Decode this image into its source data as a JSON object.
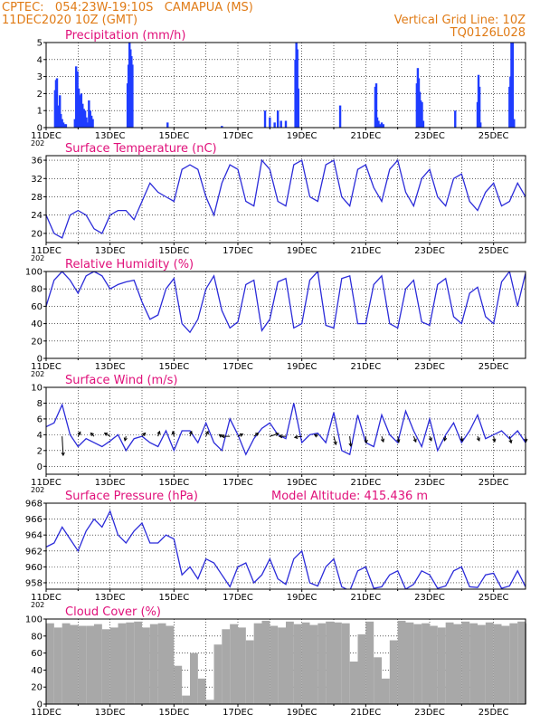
{
  "header": {
    "source_line": "CPTEC:   054:23W-19:10S   CAMAPUA (MS)",
    "date_line": "11DEC2020 10Z (GMT)",
    "grid_note": "Vertical Grid Line: 10Z",
    "code": "TQ0126L028"
  },
  "x_axis": {
    "ticks": [
      "11DEC",
      "13DEC",
      "15DEC",
      "17DEC",
      "19DEC",
      "21DEC",
      "23DEC",
      "25DEC"
    ],
    "year_fragment": "202"
  },
  "colors": {
    "header": "#e07b16",
    "title": "#e0107a",
    "line": "#2b2bd9",
    "bar": "#1f3cff",
    "cloud": "#a8a8a8",
    "arrow": "#000000"
  },
  "chart_data": [
    {
      "id": "precip",
      "type": "bar",
      "title": "Precipitation (mm/h)",
      "ylim": [
        0,
        5
      ],
      "yticks": [
        0,
        1,
        2,
        3,
        4,
        5
      ],
      "x_unit": "days after 11DEC 10Z",
      "xlim": [
        0,
        15
      ],
      "x": [
        0.28,
        0.31,
        0.34,
        0.37,
        0.4,
        0.43,
        0.46,
        0.5,
        0.54,
        0.58,
        0.62,
        0.9,
        0.94,
        0.98,
        1.02,
        1.06,
        1.1,
        1.14,
        1.18,
        1.22,
        1.26,
        1.3,
        1.34,
        1.38,
        1.42,
        1.46,
        2.55,
        2.58,
        2.61,
        2.64,
        2.67,
        2.7,
        3.8,
        5.5,
        6.85,
        7.0,
        7.15,
        7.25,
        7.35,
        7.5,
        7.8,
        7.83,
        7.86,
        7.89,
        9.2,
        10.3,
        10.33,
        10.36,
        10.4,
        10.45,
        10.5,
        10.55,
        11.6,
        11.63,
        11.66,
        11.69,
        11.72,
        11.76,
        11.8,
        12.8,
        13.5,
        13.53,
        13.56,
        13.59,
        14.5,
        14.53,
        14.56,
        14.6,
        14.64
      ],
      "values": [
        2.2,
        2.8,
        2.9,
        1.2,
        1.3,
        1.9,
        0.8,
        0.5,
        0.3,
        0.2,
        0.2,
        0.5,
        3.6,
        3.3,
        2.3,
        1.9,
        2.0,
        1.4,
        1.1,
        1.0,
        0.6,
        0.3,
        1.6,
        1.0,
        0.7,
        0.5,
        2.6,
        3.7,
        5.0,
        4.6,
        4.2,
        3.7,
        0.3,
        0.1,
        1.0,
        0.6,
        0.3,
        1.0,
        0.4,
        0.4,
        4.0,
        5.0,
        4.6,
        2.3,
        1.3,
        2.4,
        2.6,
        0.6,
        0.4,
        0.2,
        0.3,
        0.2,
        2.6,
        3.5,
        2.9,
        2.1,
        1.6,
        1.5,
        0.4,
        1.0,
        1.5,
        3.1,
        2.4,
        0.3,
        2.4,
        3.0,
        5.0,
        5.0,
        0.5
      ]
    },
    {
      "id": "temperature",
      "type": "line",
      "title": "Surface Temperature (nC)",
      "ylim": [
        18,
        37
      ],
      "yticks": [
        20,
        24,
        28,
        32,
        36
      ],
      "x_unit": "days after 11DEC 10Z",
      "xlim": [
        0,
        15
      ],
      "x": [
        0.0,
        0.25,
        0.5,
        0.75,
        1.0,
        1.25,
        1.5,
        1.75,
        2.0,
        2.25,
        2.5,
        2.75,
        3.0,
        3.25,
        3.5,
        3.75,
        4.0,
        4.25,
        4.5,
        4.75,
        5.0,
        5.25,
        5.5,
        5.75,
        6.0,
        6.25,
        6.5,
        6.75,
        7.0,
        7.25,
        7.5,
        7.75,
        8.0,
        8.25,
        8.5,
        8.75,
        9.0,
        9.25,
        9.5,
        9.75,
        10.0,
        10.25,
        10.5,
        10.75,
        11.0,
        11.25,
        11.5,
        11.75,
        12.0,
        12.25,
        12.5,
        12.75,
        13.0,
        13.25,
        13.5,
        13.75,
        14.0,
        14.25,
        14.5,
        14.75,
        15.0
      ],
      "values": [
        24,
        20,
        19,
        24,
        25,
        24,
        21,
        20,
        24,
        25,
        25,
        23,
        27,
        31,
        29,
        28,
        27,
        34,
        35,
        34,
        28,
        24,
        31,
        35,
        34,
        27,
        26,
        36,
        34,
        27,
        26,
        35,
        36,
        28,
        27,
        35,
        36,
        28,
        26,
        34,
        35,
        30,
        27,
        34,
        36,
        29,
        26,
        32,
        34,
        28,
        26,
        32,
        33,
        27,
        25,
        29,
        31,
        26,
        27,
        31,
        28
      ]
    },
    {
      "id": "humidity",
      "type": "line",
      "title": "Relative Humidity (%)",
      "ylim": [
        0,
        100
      ],
      "yticks": [
        0,
        20,
        40,
        60,
        80,
        100
      ],
      "x_unit": "days after 11DEC 10Z",
      "xlim": [
        0,
        15
      ],
      "x": [
        0.0,
        0.25,
        0.5,
        0.75,
        1.0,
        1.25,
        1.5,
        1.75,
        2.0,
        2.25,
        2.5,
        2.75,
        3.0,
        3.25,
        3.5,
        3.75,
        4.0,
        4.25,
        4.5,
        4.75,
        5.0,
        5.25,
        5.5,
        5.75,
        6.0,
        6.25,
        6.5,
        6.75,
        7.0,
        7.25,
        7.5,
        7.75,
        8.0,
        8.25,
        8.5,
        8.75,
        9.0,
        9.25,
        9.5,
        9.75,
        10.0,
        10.25,
        10.5,
        10.75,
        11.0,
        11.25,
        11.5,
        11.75,
        12.0,
        12.25,
        12.5,
        12.75,
        13.0,
        13.25,
        13.5,
        13.75,
        14.0,
        14.25,
        14.5,
        14.75,
        15.0
      ],
      "values": [
        60,
        90,
        100,
        90,
        75,
        95,
        100,
        95,
        80,
        85,
        88,
        90,
        65,
        45,
        50,
        80,
        92,
        40,
        30,
        45,
        80,
        95,
        55,
        35,
        42,
        85,
        90,
        32,
        45,
        88,
        92,
        35,
        40,
        90,
        100,
        38,
        35,
        92,
        95,
        40,
        40,
        85,
        95,
        40,
        35,
        80,
        90,
        42,
        38,
        85,
        92,
        48,
        40,
        75,
        82,
        48,
        40,
        88,
        100,
        60,
        98
      ]
    },
    {
      "id": "wind",
      "type": "line",
      "title": "Surface Wind (m/s)",
      "ylim": [
        -1,
        10
      ],
      "yticks": [
        0,
        2,
        4,
        6,
        8,
        10
      ],
      "x_unit": "days after 11DEC 10Z",
      "xlim": [
        0,
        15
      ],
      "x": [
        0.0,
        0.25,
        0.5,
        0.75,
        1.0,
        1.25,
        1.5,
        1.75,
        2.0,
        2.25,
        2.5,
        2.75,
        3.0,
        3.25,
        3.5,
        3.75,
        4.0,
        4.25,
        4.5,
        4.75,
        5.0,
        5.25,
        5.5,
        5.75,
        6.0,
        6.25,
        6.5,
        6.75,
        7.0,
        7.25,
        7.5,
        7.75,
        8.0,
        8.25,
        8.5,
        8.75,
        9.0,
        9.25,
        9.5,
        9.75,
        10.0,
        10.25,
        10.5,
        10.75,
        11.0,
        11.25,
        11.5,
        11.75,
        12.0,
        12.25,
        12.5,
        12.75,
        13.0,
        13.25,
        13.5,
        13.75,
        14.0,
        14.25,
        14.5,
        14.75,
        15.0
      ],
      "values": [
        5,
        5.5,
        7.8,
        4,
        2.5,
        3.5,
        3,
        2.5,
        3.2,
        4,
        2,
        3.5,
        3.8,
        3,
        2.5,
        4.5,
        2,
        4.5,
        4.5,
        3,
        5.5,
        3,
        2,
        6,
        4,
        1.5,
        3.5,
        4.8,
        5.5,
        4,
        3.5,
        8,
        3,
        4,
        4.2,
        3,
        6.8,
        2,
        1.5,
        6.5,
        3,
        2.5,
        6.5,
        4,
        3,
        7,
        4.5,
        2.5,
        6,
        2,
        4,
        5.5,
        3,
        4.5,
        6.5,
        3.5,
        4,
        4.5,
        3.5,
        4.5,
        3
      ],
      "arrows": [
        {
          "x": 0.5,
          "u": 0.2,
          "v": -3.5
        },
        {
          "x": 1.0,
          "u": 0.4,
          "v": 0.8
        },
        {
          "x": 1.5,
          "u": -0.6,
          "v": 0.6
        },
        {
          "x": 2.0,
          "u": -1.0,
          "v": 0.6
        },
        {
          "x": 2.5,
          "u": -0.2,
          "v": -0.8
        },
        {
          "x": 3.0,
          "u": 0.6,
          "v": 0.6
        },
        {
          "x": 3.5,
          "u": 0.3,
          "v": 0.9
        },
        {
          "x": 4.0,
          "u": -0.2,
          "v": 0.9
        },
        {
          "x": 4.5,
          "u": 0.3,
          "v": 0.9
        },
        {
          "x": 5.0,
          "u": 0.4,
          "v": 0.9
        },
        {
          "x": 5.5,
          "u": -0.5,
          "v": 0.3
        },
        {
          "x": 5.75,
          "u": -1.5,
          "v": 0.0
        },
        {
          "x": 6.0,
          "u": 0.9,
          "v": 0.4
        },
        {
          "x": 6.5,
          "u": 0.8,
          "v": 0.6
        },
        {
          "x": 7.0,
          "u": 1.6,
          "v": 0.5
        },
        {
          "x": 7.5,
          "u": -1.2,
          "v": 0.0
        },
        {
          "x": 8.0,
          "u": -1.3,
          "v": -0.2
        },
        {
          "x": 8.5,
          "u": -0.6,
          "v": 0.3
        },
        {
          "x": 9.0,
          "u": 0.4,
          "v": -1.5
        },
        {
          "x": 9.5,
          "u": 0.2,
          "v": -1.8
        },
        {
          "x": 10.0,
          "u": 0.1,
          "v": -1.2
        },
        {
          "x": 10.5,
          "u": 0.3,
          "v": -1.0
        },
        {
          "x": 11.0,
          "u": 0.2,
          "v": -1.1
        },
        {
          "x": 11.5,
          "u": 0.4,
          "v": -1.0
        },
        {
          "x": 12.0,
          "u": 0.3,
          "v": -0.8
        },
        {
          "x": 12.5,
          "u": -0.2,
          "v": -0.8
        },
        {
          "x": 13.0,
          "u": 0.1,
          "v": -0.9
        },
        {
          "x": 13.5,
          "u": 0.3,
          "v": -0.8
        },
        {
          "x": 14.0,
          "u": 0.2,
          "v": -1.0
        },
        {
          "x": 14.5,
          "u": 0.3,
          "v": -1.2
        },
        {
          "x": 15.0,
          "u": 0.1,
          "v": -1.0
        }
      ]
    },
    {
      "id": "pressure",
      "type": "line",
      "title": "Surface Pressure (hPa)",
      "annotation": "Model Altitude: 415.436 m",
      "ylim": [
        957.2,
        968
      ],
      "yticks": [
        958,
        960,
        962,
        964,
        966,
        968
      ],
      "x_unit": "days after 11DEC 10Z",
      "xlim": [
        0,
        15
      ],
      "x": [
        0.0,
        0.25,
        0.5,
        0.75,
        1.0,
        1.25,
        1.5,
        1.75,
        2.0,
        2.25,
        2.5,
        2.75,
        3.0,
        3.25,
        3.5,
        3.75,
        4.0,
        4.25,
        4.5,
        4.75,
        5.0,
        5.25,
        5.5,
        5.75,
        6.0,
        6.25,
        6.5,
        6.75,
        7.0,
        7.25,
        7.5,
        7.75,
        8.0,
        8.25,
        8.5,
        8.75,
        9.0,
        9.25,
        9.5,
        9.75,
        10.0,
        10.25,
        10.5,
        10.75,
        11.0,
        11.25,
        11.5,
        11.75,
        12.0,
        12.25,
        12.5,
        12.75,
        13.0,
        13.25,
        13.5,
        13.75,
        14.0,
        14.25,
        14.5,
        14.75,
        15.0
      ],
      "values": [
        962.5,
        963,
        965,
        963.5,
        962,
        964.5,
        966,
        965,
        967,
        964,
        963,
        964.5,
        965.5,
        963,
        963,
        964,
        963.5,
        959,
        960,
        958.5,
        961,
        960.5,
        959,
        957.5,
        960,
        960.5,
        958,
        959,
        961,
        958.5,
        957.8,
        961,
        962,
        958,
        957.6,
        960,
        961,
        957.5,
        957,
        959.5,
        960,
        957.3,
        957.5,
        959,
        959.5,
        957.2,
        957.8,
        959.5,
        959,
        957.3,
        957.6,
        959.5,
        960,
        957.5,
        957.4,
        959,
        959.2,
        957.3,
        957.6,
        959.5,
        957.5
      ]
    },
    {
      "id": "cloud",
      "type": "area",
      "title": "Cloud Cover (%)",
      "ylim": [
        0,
        100
      ],
      "yticks": [
        0,
        20,
        40,
        60,
        80,
        100
      ],
      "x_unit": "days after 11DEC 10Z",
      "xlim": [
        0,
        15
      ],
      "x": [
        0.0,
        0.25,
        0.5,
        0.75,
        1.0,
        1.25,
        1.5,
        1.75,
        2.0,
        2.25,
        2.5,
        2.75,
        3.0,
        3.25,
        3.5,
        3.75,
        4.0,
        4.25,
        4.5,
        4.75,
        5.0,
        5.25,
        5.5,
        5.75,
        6.0,
        6.25,
        6.5,
        6.75,
        7.0,
        7.25,
        7.5,
        7.75,
        8.0,
        8.25,
        8.5,
        8.75,
        9.0,
        9.25,
        9.5,
        9.75,
        10.0,
        10.25,
        10.5,
        10.75,
        11.0,
        11.25,
        11.5,
        11.75,
        12.0,
        12.25,
        12.5,
        12.75,
        13.0,
        13.25,
        13.5,
        13.75,
        14.0,
        14.25,
        14.5,
        14.75,
        15.0
      ],
      "values": [
        95,
        90,
        95,
        93,
        92,
        92,
        94,
        88,
        90,
        95,
        96,
        97,
        90,
        94,
        95,
        92,
        45,
        10,
        60,
        30,
        5,
        70,
        88,
        94,
        90,
        75,
        95,
        98,
        92,
        90,
        97,
        94,
        96,
        93,
        95,
        97,
        96,
        95,
        50,
        82,
        97,
        55,
        30,
        75,
        98,
        96,
        94,
        95,
        92,
        90,
        96,
        94,
        97,
        95,
        93,
        96,
        94,
        92,
        95,
        97,
        95
      ]
    }
  ]
}
